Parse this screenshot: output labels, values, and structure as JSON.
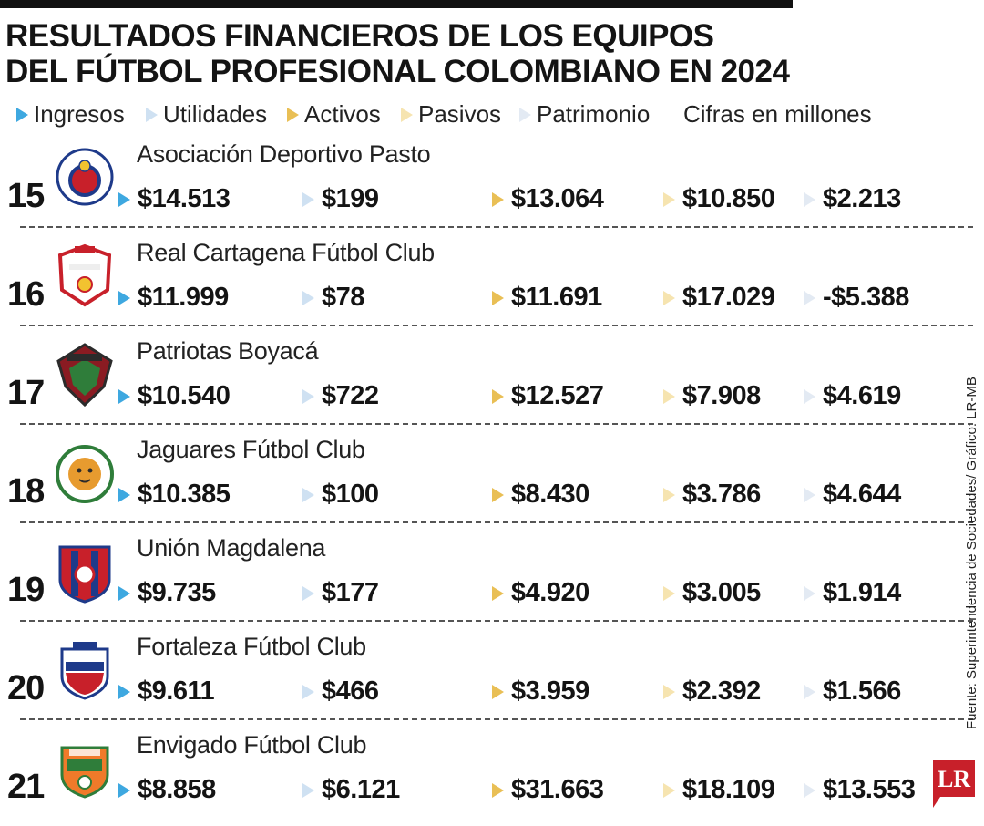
{
  "title": {
    "line1": "RESULTADOS FINANCIEROS DE LOS EQUIPOS",
    "line2": "DEL FÚTBOL PROFESIONAL COLOMBIANO EN 2024"
  },
  "legend": {
    "items": [
      {
        "label": "Ingresos",
        "color": "#3ea8e0"
      },
      {
        "label": "Utilidades",
        "color": "#cfe1f2"
      },
      {
        "label": "Activos",
        "color": "#e9bf55"
      },
      {
        "label": "Pasivos",
        "color": "#f6e4b0"
      },
      {
        "label": "Patrimonio",
        "color": "#e3eaf3"
      }
    ],
    "note": "Cifras en millones"
  },
  "teams": [
    {
      "rank": "15",
      "name": "Asociación Deportivo Pasto",
      "logo": "deportivo-pasto-logo",
      "values": [
        "$14.513",
        "$199",
        "$13.064",
        "$10.850",
        "$2.213"
      ]
    },
    {
      "rank": "16",
      "name": "Real Cartagena Fútbol Club",
      "logo": "real-cartagena-logo",
      "values": [
        "$11.999",
        "$78",
        "$11.691",
        "$17.029",
        "-$5.388"
      ]
    },
    {
      "rank": "17",
      "name": "Patriotas Boyacá",
      "logo": "patriotas-logo",
      "values": [
        "$10.540",
        "$722",
        "$12.527",
        "$7.908",
        "$4.619"
      ]
    },
    {
      "rank": "18",
      "name": "Jaguares Fútbol Club",
      "logo": "jaguares-logo",
      "values": [
        "$10.385",
        "$100",
        "$8.430",
        "$3.786",
        "$4.644"
      ]
    },
    {
      "rank": "19",
      "name": "Unión Magdalena",
      "logo": "union-magdalena-logo",
      "values": [
        "$9.735",
        "$177",
        "$4.920",
        "$3.005",
        "$1.914"
      ]
    },
    {
      "rank": "20",
      "name": "Fortaleza Fútbol Club",
      "logo": "fortaleza-logo",
      "values": [
        "$9.611",
        "$466",
        "$3.959",
        "$2.392",
        "$1.566"
      ]
    },
    {
      "rank": "21",
      "name": "Envigado Fútbol Club",
      "logo": "envigado-logo",
      "values": [
        "$8.858",
        "$6.121",
        "$31.663",
        "$18.109",
        "$13.553"
      ]
    }
  ],
  "source": "Fuente: Superintendencia de Sociedades/ Gráfico: LR-MB",
  "brand": {
    "text": "LR",
    "color": "#c8202a"
  }
}
